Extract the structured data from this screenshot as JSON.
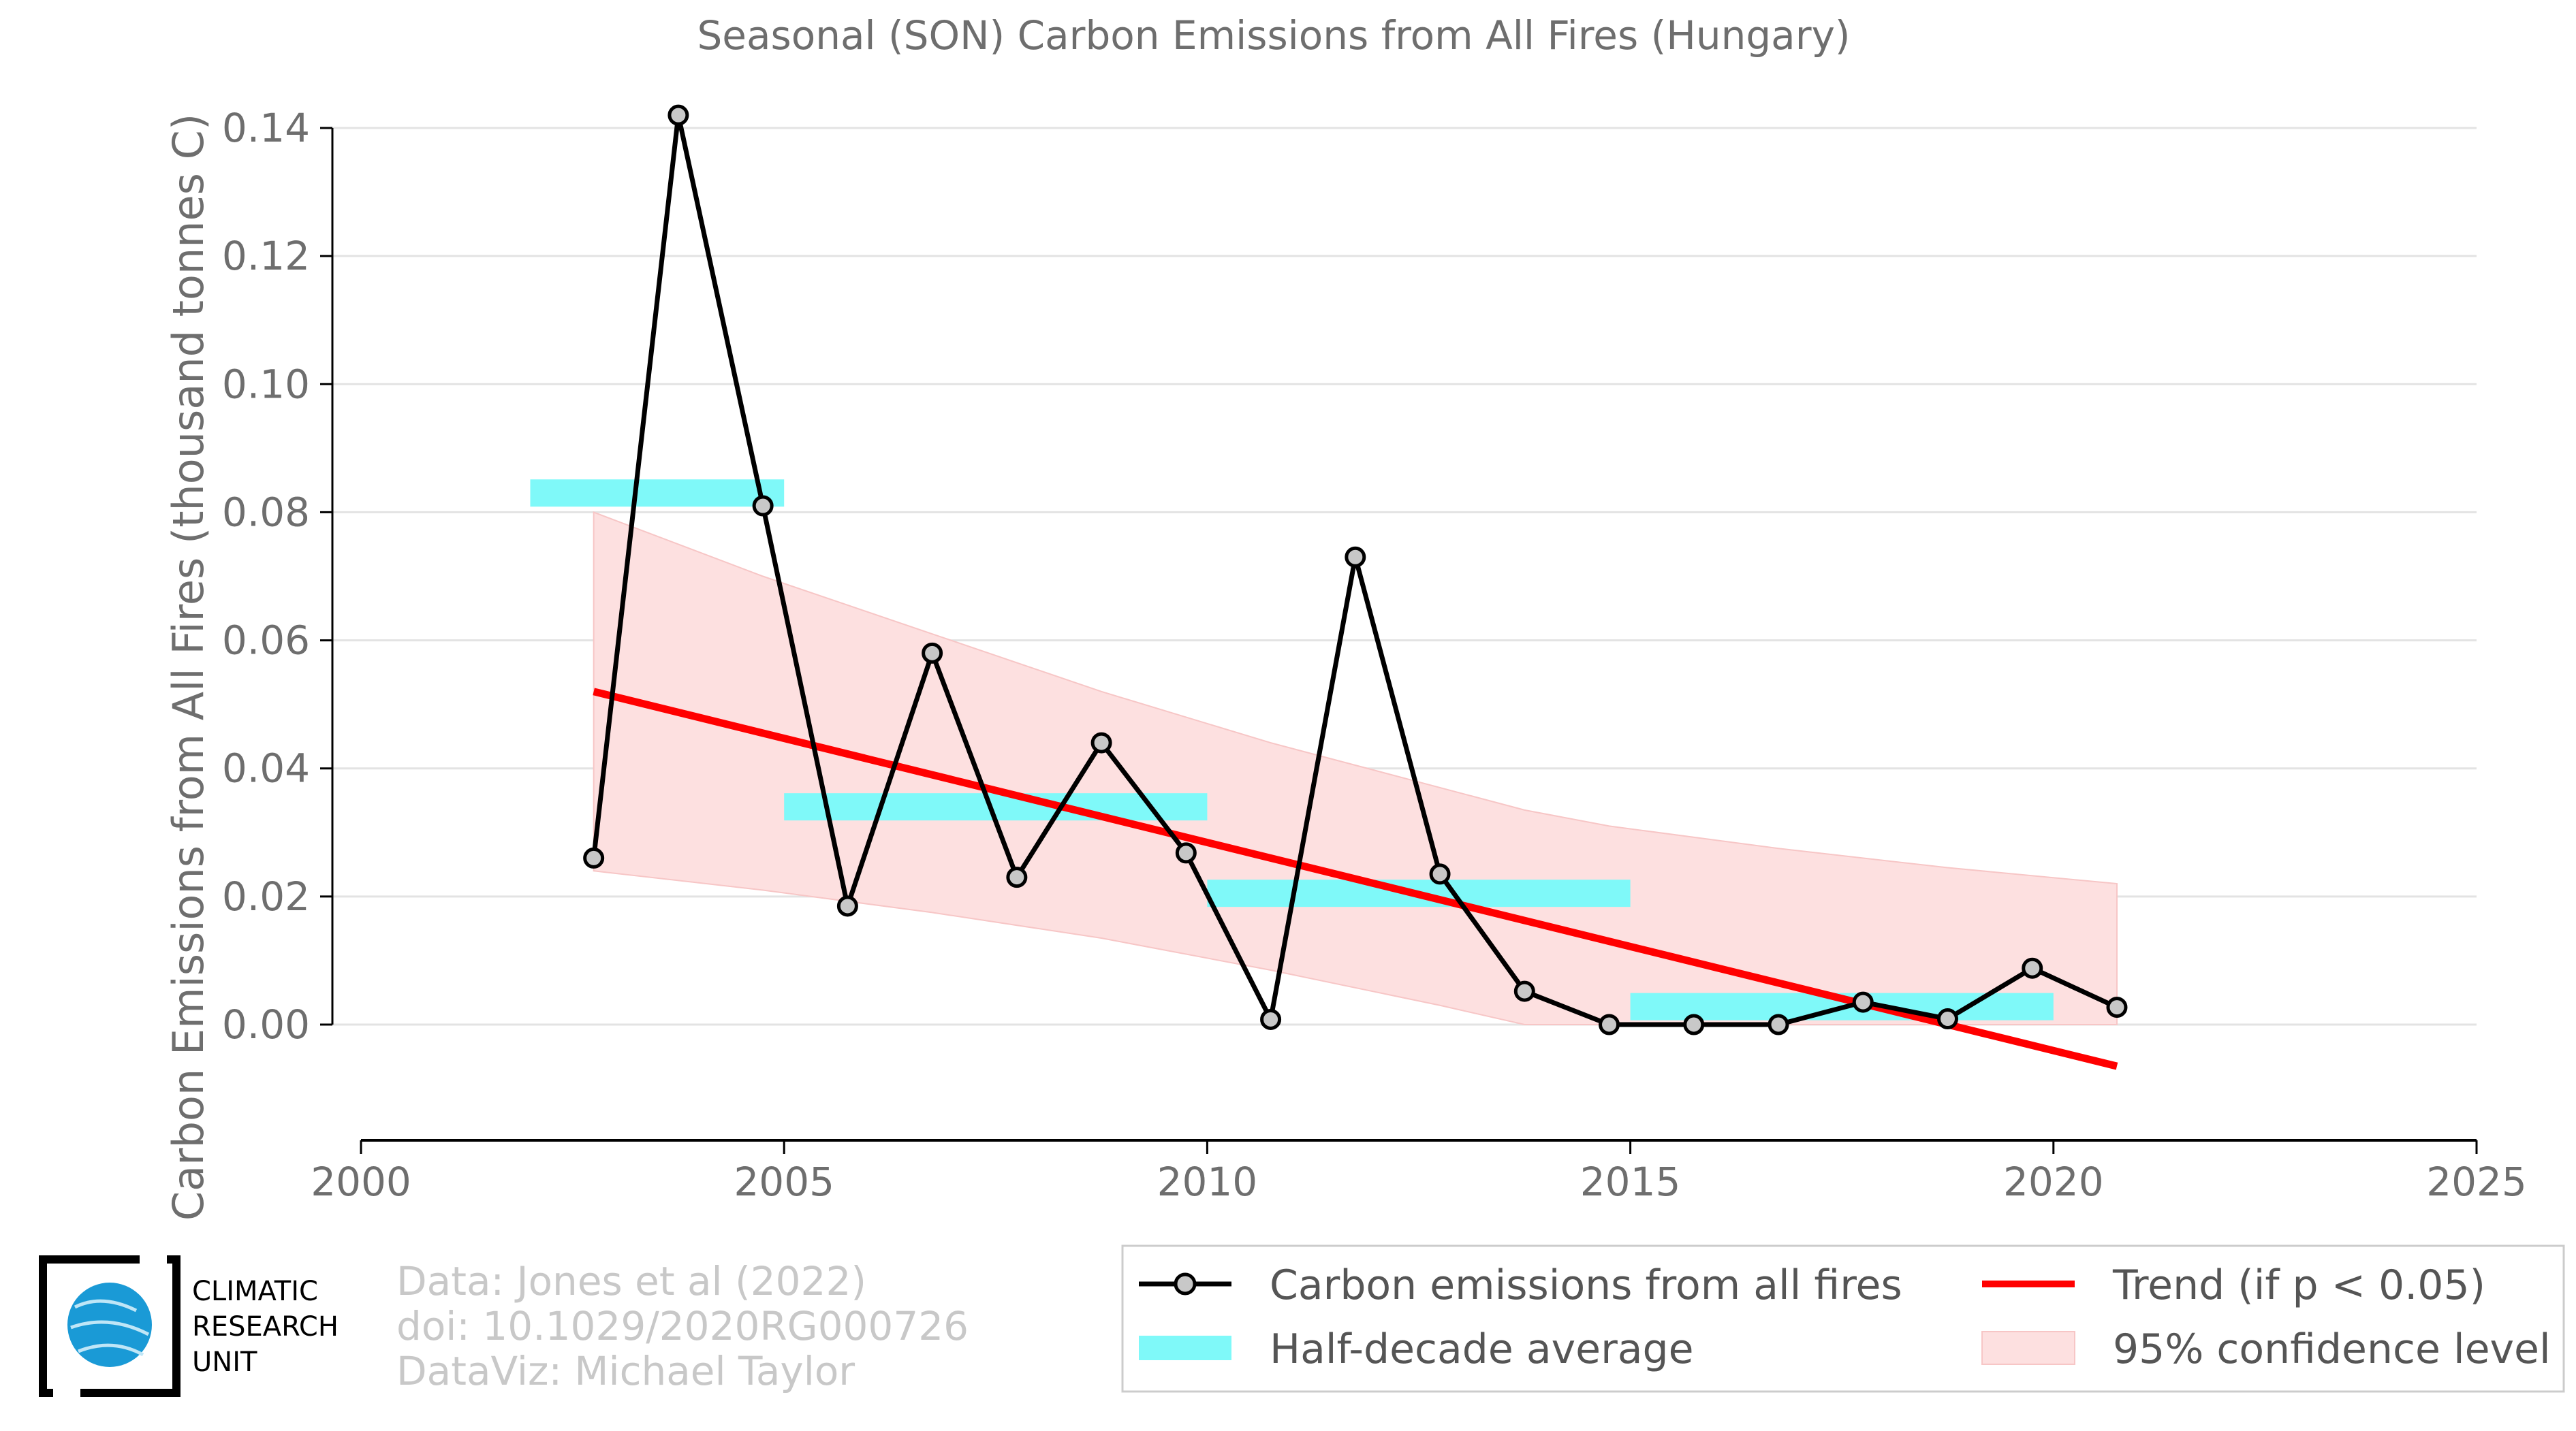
{
  "chart_data": {
    "type": "line",
    "title": "Seasonal (SON) Carbon Emissions from All Fires (Hungary)",
    "ylabel": "Carbon Emissions from All Fires (thousand tonnes C)",
    "xlabel": "",
    "xlim": [
      2000,
      2025
    ],
    "ylim": [
      -0.018,
      0.14
    ],
    "xticks": [
      "2000",
      "2005",
      "2010",
      "2015",
      "2020",
      "2025"
    ],
    "yticks": [
      "0.00",
      "0.02",
      "0.04",
      "0.06",
      "0.08",
      "0.10",
      "0.12",
      "0.14"
    ],
    "grid": true,
    "legend_position": "bottom-right",
    "colors": {
      "series": "#000000",
      "marker_fill": "#c8c8c8",
      "half_decade": "#7ff9f9",
      "trend": "#ff0000",
      "confidence": "#fde0e0",
      "confidence_edge": "#f7c6c6"
    },
    "series": {
      "name": "Carbon emissions from all fires",
      "x": [
        2002.75,
        2003.75,
        2004.75,
        2005.75,
        2006.75,
        2007.75,
        2008.75,
        2009.75,
        2010.75,
        2011.75,
        2012.75,
        2013.75,
        2014.75,
        2015.75,
        2016.75,
        2017.75,
        2018.75,
        2019.75,
        2020.75
      ],
      "y": [
        0.026,
        0.142,
        0.081,
        0.0185,
        0.058,
        0.023,
        0.044,
        0.0268,
        0.0008,
        0.073,
        0.0235,
        0.0052,
        0.0,
        0.0,
        0.0,
        0.0035,
        0.0009,
        0.0088,
        0.0027
      ]
    },
    "half_decade_averages": {
      "name": "Half-decade average",
      "segments": [
        {
          "x0": 2002,
          "x1": 2005,
          "y": 0.083
        },
        {
          "x0": 2005,
          "x1": 2010,
          "y": 0.034
        },
        {
          "x0": 2010,
          "x1": 2015,
          "y": 0.0205
        },
        {
          "x0": 2015,
          "x1": 2020,
          "y": 0.0028
        }
      ]
    },
    "trend": {
      "name": "Trend (if p < 0.05)",
      "x": [
        2002.75,
        2020.75
      ],
      "y": [
        0.052,
        -0.0065
      ]
    },
    "confidence_band": {
      "name": "95% confidence level",
      "x": [
        2002.75,
        2004.75,
        2006.75,
        2008.75,
        2010.75,
        2012.75,
        2013.75,
        2014.75,
        2016.75,
        2018.75,
        2020.75
      ],
      "upper": [
        0.08,
        0.07,
        0.061,
        0.052,
        0.044,
        0.037,
        0.0335,
        0.031,
        0.0275,
        0.0245,
        0.022
      ],
      "lower": [
        0.024,
        0.021,
        0.0175,
        0.0135,
        0.0085,
        0.003,
        0.0,
        0.0,
        0.0,
        0.0,
        0.0
      ]
    }
  },
  "legend": {
    "series_label": "Carbon emissions from all fires",
    "half_decade_label": "Half-decade average",
    "trend_label": "Trend (if p < 0.05)",
    "confidence_label": "95% confidence level"
  },
  "credits": {
    "line1": "Data: Jones et al (2022)",
    "line2": "doi: 10.1029/2020RG000726",
    "line3": "DataViz: Michael Taylor"
  },
  "logo": {
    "line1": "CLIMATIC",
    "line2": "RESEARCH",
    "line3": "UNIT"
  }
}
